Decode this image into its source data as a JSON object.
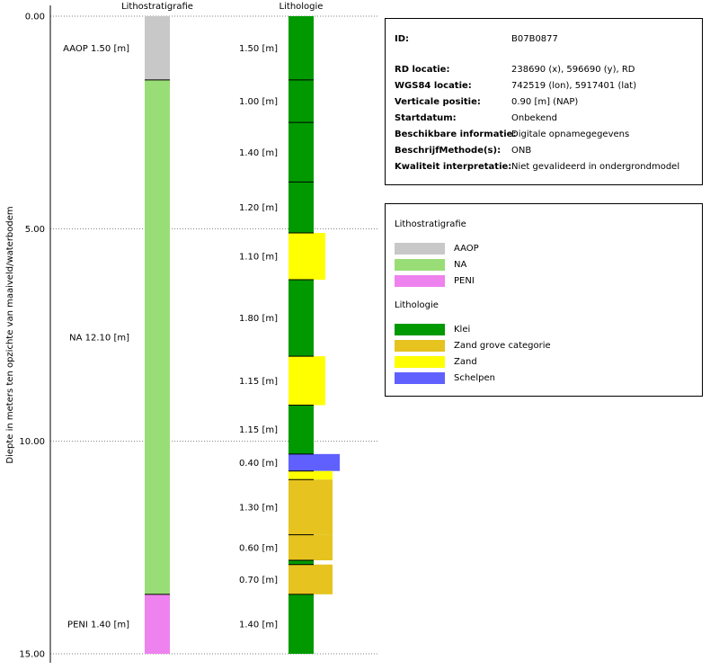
{
  "chart_data": {
    "type": "column-log",
    "y_axis": {
      "label": "Diepte in meters ten opzichte van maaiveld/waterbodem",
      "range": [
        0,
        15
      ],
      "ticks": [
        "0.00",
        "5.00",
        "10.00",
        "15.00"
      ]
    },
    "columns": [
      {
        "title": "Lithostratigrafie",
        "intervals": [
          {
            "name": "AAOP",
            "top": 0.0,
            "bottom": 1.5,
            "label": "AAOP 1.50 [m]",
            "color": "#c8c8c8"
          },
          {
            "name": "NA",
            "top": 1.5,
            "bottom": 13.6,
            "label": "NA 12.10 [m]",
            "color": "#99dd77"
          },
          {
            "name": "PENI",
            "top": 13.6,
            "bottom": 15.0,
            "label": "PENI 1.40 [m]",
            "color": "#ee82ee"
          }
        ]
      },
      {
        "title": "Lithologie",
        "intervals": [
          {
            "type": "Klei",
            "top": 0.0,
            "bottom": 1.5,
            "label": "1.50 [m]"
          },
          {
            "type": "Klei",
            "top": 1.5,
            "bottom": 2.5,
            "label": "1.00 [m]"
          },
          {
            "type": "Klei",
            "top": 2.5,
            "bottom": 3.9,
            "label": "1.40 [m]"
          },
          {
            "type": "Klei",
            "top": 3.9,
            "bottom": 5.1,
            "label": "1.20 [m]"
          },
          {
            "type": "Zand",
            "top": 5.1,
            "bottom": 6.2,
            "label": "1.10 [m]"
          },
          {
            "type": "Klei",
            "top": 6.2,
            "bottom": 8.0,
            "label": "1.80 [m]"
          },
          {
            "type": "Zand",
            "top": 8.0,
            "bottom": 9.15,
            "label": "1.15 [m]"
          },
          {
            "type": "Klei",
            "top": 9.15,
            "bottom": 10.3,
            "label": "1.15 [m]"
          },
          {
            "type": "Schelpen",
            "top": 10.3,
            "bottom": 10.7,
            "label": "0.40 [m]"
          },
          {
            "type": "Zand",
            "top": 10.7,
            "bottom": 10.9,
            "label": ""
          },
          {
            "type": "Zand grove categorie",
            "top": 10.9,
            "bottom": 12.2,
            "label": "1.30 [m]"
          },
          {
            "type": "Zand grove categorie",
            "top": 12.2,
            "bottom": 12.8,
            "label": "0.60 [m]"
          },
          {
            "type": "Klei",
            "top": 12.8,
            "bottom": 12.9,
            "label": ""
          },
          {
            "type": "Zand grove categorie",
            "top": 12.9,
            "bottom": 13.6,
            "label": "0.70 [m]"
          },
          {
            "type": "Klei",
            "top": 13.6,
            "bottom": 15.0,
            "label": "1.40 [m]"
          }
        ]
      }
    ]
  },
  "lithology_styles": {
    "Klei": {
      "color": "#009900",
      "wide": false
    },
    "Zand grove categorie": {
      "color": "#e6c31e",
      "wide": true
    },
    "Zand": {
      "color": "#ffff00",
      "wide": true
    },
    "Schelpen": {
      "color": "#6060ff",
      "wide": true
    }
  },
  "info": [
    {
      "key": "ID:",
      "value": "B07B0877"
    },
    {
      "key": "RD locatie:",
      "value": "238690 (x), 596690 (y), RD"
    },
    {
      "key": "WGS84 locatie:",
      "value": "742519 (lon), 5917401 (lat)"
    },
    {
      "key": "Verticale positie:",
      "value": "0.90 [m] (NAP)"
    },
    {
      "key": "Startdatum:",
      "value": "Onbekend"
    },
    {
      "key": "Beschikbare informatie:",
      "value": "Digitale opnamegegevens"
    },
    {
      "key": "BeschrijfMethode(s):",
      "value": "ONB"
    },
    {
      "key": "Kwaliteit interpretatie:",
      "value": "Niet gevalideerd in ondergrondmodel"
    }
  ],
  "legend": {
    "litho_title": "Lithostratigrafie",
    "litho_items": [
      {
        "label": "AAOP",
        "color": "#c8c8c8"
      },
      {
        "label": "NA",
        "color": "#99dd77"
      },
      {
        "label": "PENI",
        "color": "#ee82ee"
      }
    ],
    "lith_title": "Lithologie",
    "lith_items": [
      {
        "label": "Klei",
        "color": "#009900"
      },
      {
        "label": "Zand grove categorie",
        "color": "#e6c31e"
      },
      {
        "label": "Zand",
        "color": "#ffff00"
      },
      {
        "label": "Schelpen",
        "color": "#6060ff"
      }
    ]
  }
}
